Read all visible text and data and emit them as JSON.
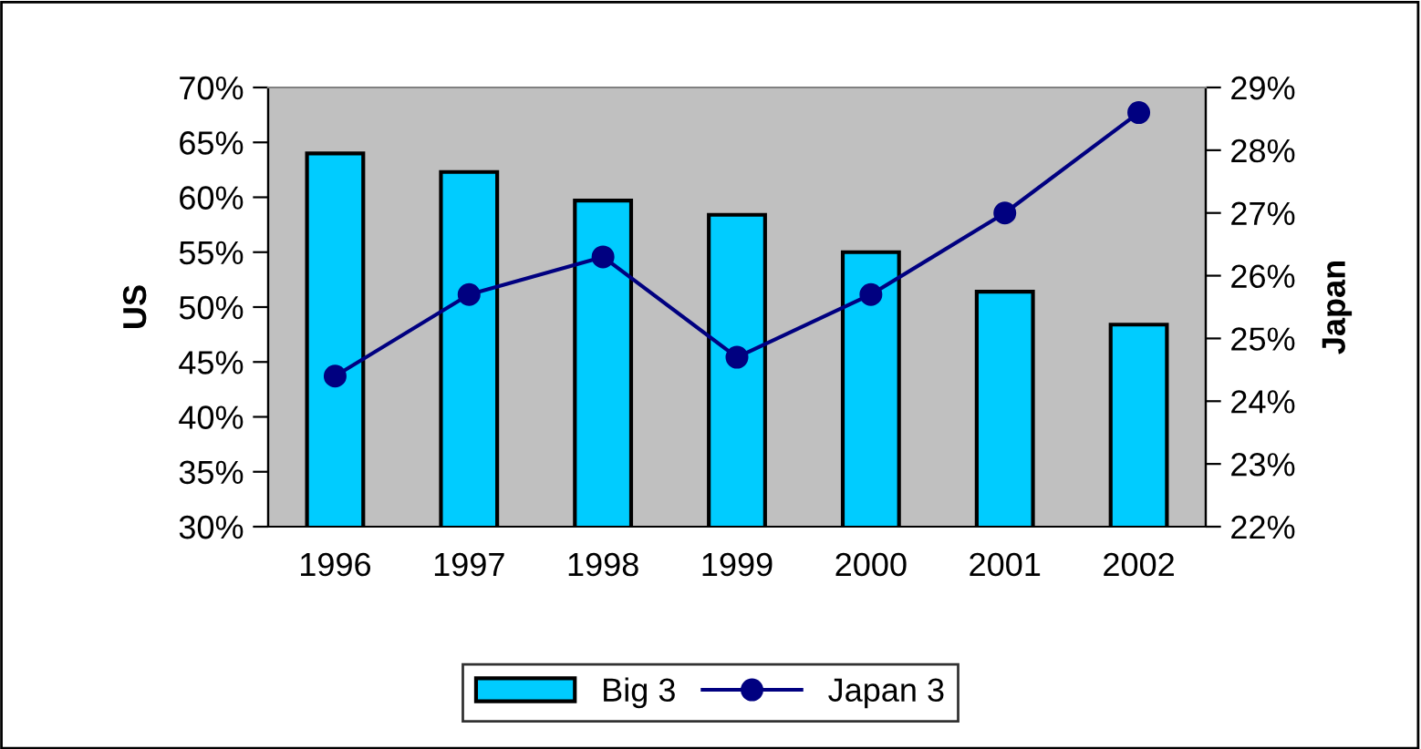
{
  "chart_data": {
    "type": "bar",
    "ylabel": "US",
    "y2label": "Japan",
    "categories": [
      "1996",
      "1997",
      "1998",
      "1999",
      "2000",
      "2001",
      "2002"
    ],
    "series": [
      {
        "name": "Big 3",
        "color": "#00ccff",
        "values": [
          64.0,
          62.3,
          59.7,
          58.4,
          55.0,
          51.4,
          48.4
        ]
      },
      {
        "name": "Japan 3",
        "type": "line",
        "axis": "y2",
        "color": "#000080",
        "marker": "circle",
        "values": [
          24.4,
          25.7,
          26.3,
          24.7,
          25.7,
          27.0,
          28.6
        ]
      }
    ],
    "ylim": [
      30,
      70
    ],
    "yticks": [
      {
        "value": 30,
        "label": "30%"
      },
      {
        "value": 35,
        "label": "35%"
      },
      {
        "value": 40,
        "label": "40%"
      },
      {
        "value": 45,
        "label": "45%"
      },
      {
        "value": 50,
        "label": "50%"
      },
      {
        "value": 55,
        "label": "55%"
      },
      {
        "value": 60,
        "label": "60%"
      },
      {
        "value": 65,
        "label": "65%"
      },
      {
        "value": 70,
        "label": "70%"
      }
    ],
    "y2lim": [
      22,
      29
    ],
    "y2ticks": [
      {
        "value": 22,
        "label": "22%"
      },
      {
        "value": 23,
        "label": "23%"
      },
      {
        "value": 24,
        "label": "24%"
      },
      {
        "value": 25,
        "label": "25%"
      },
      {
        "value": 26,
        "label": "26%"
      },
      {
        "value": 27,
        "label": "27%"
      },
      {
        "value": 28,
        "label": "28%"
      },
      {
        "value": 29,
        "label": "29%"
      }
    ],
    "grid": false,
    "legend": "bottom"
  }
}
